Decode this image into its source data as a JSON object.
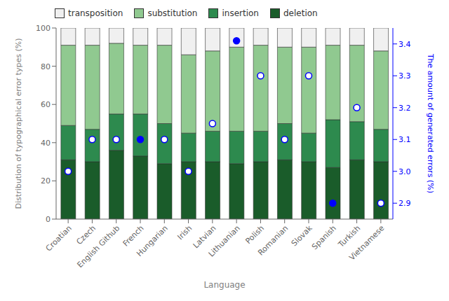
{
  "chart_data": {
    "type": "bar",
    "stacked": true,
    "grid": false,
    "legend": "upper left",
    "xlabel": "Language",
    "ylabel": "Distribution of typographical error types (%)",
    "y2label": "The amount of generated errors (%)",
    "categories": [
      "Croatian",
      "Czech",
      "English Github",
      "French",
      "Hungarian",
      "Irish",
      "Latvian",
      "Lithuanian",
      "Polish",
      "Romanian",
      "Slovak",
      "Spanish",
      "Turkish",
      "Vietnamese"
    ],
    "ylim": [
      0,
      100
    ],
    "yticks": [
      0,
      20,
      40,
      60,
      80,
      100
    ],
    "y2lim": [
      2.85,
      3.45
    ],
    "y2ticks": [
      {
        "value": 2.9,
        "label": "2.9"
      },
      {
        "value": 3.0,
        "label": "3.0"
      },
      {
        "value": 3.1,
        "label": "3.1"
      },
      {
        "value": 3.2,
        "label": "3.2"
      },
      {
        "value": 3.3,
        "label": "3.3"
      },
      {
        "value": 3.4,
        "label": "3.4"
      }
    ],
    "series": [
      {
        "name": "deletion",
        "type": "bar",
        "color": "#1a5c2a",
        "values": [
          31,
          30,
          36,
          33,
          29,
          30,
          30,
          29,
          30,
          31,
          30,
          27,
          31,
          30
        ]
      },
      {
        "name": "insertion",
        "type": "bar",
        "color": "#2d8a4e",
        "values": [
          18,
          17,
          19,
          22,
          21,
          15,
          16,
          17,
          16,
          19,
          15,
          25,
          20,
          17
        ]
      },
      {
        "name": "substitution",
        "type": "bar",
        "color": "#90c990",
        "values": [
          42,
          44,
          37,
          36,
          41,
          41,
          42,
          44,
          45,
          40,
          45,
          39,
          40,
          41
        ]
      },
      {
        "name": "transposition",
        "type": "bar",
        "color": "#f0f0f0",
        "values": [
          9,
          9,
          8,
          9,
          9,
          14,
          12,
          10,
          9,
          10,
          10,
          9,
          9,
          12
        ]
      },
      {
        "type": "scatter",
        "axis": "y2",
        "marker": "circle",
        "color": "blue",
        "values": [
          3.0,
          3.1,
          3.1,
          3.1,
          3.1,
          3.0,
          3.15,
          3.41,
          3.3,
          3.1,
          3.3,
          2.9,
          3.2,
          2.9
        ],
        "filled": [
          false,
          false,
          false,
          true,
          false,
          false,
          false,
          true,
          false,
          false,
          false,
          true,
          false,
          false
        ]
      }
    ]
  }
}
